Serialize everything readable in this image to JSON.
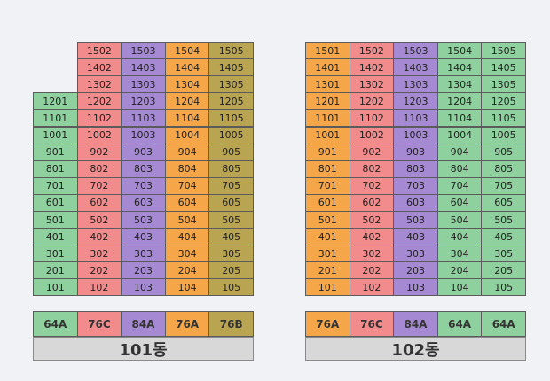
{
  "colors": {
    "green": "#8fd19e",
    "pink": "#f28b8b",
    "purple": "#a58ad3",
    "orange": "#f5a649",
    "olive": "#b8a451"
  },
  "buildings": [
    {
      "name": "101동",
      "column_colors": [
        "green",
        "pink",
        "purple",
        "orange",
        "olive"
      ],
      "floors": [
        [
          "",
          "1502",
          "1503",
          "1504",
          "1505"
        ],
        [
          "",
          "1402",
          "1403",
          "1404",
          "1405"
        ],
        [
          "",
          "1302",
          "1303",
          "1304",
          "1305"
        ],
        [
          "1201",
          "1202",
          "1203",
          "1204",
          "1205"
        ],
        [
          "1101",
          "1102",
          "1103",
          "1104",
          "1105"
        ],
        [
          "1001",
          "1002",
          "1003",
          "1004",
          "1005"
        ],
        [
          "901",
          "902",
          "903",
          "904",
          "905"
        ],
        [
          "801",
          "802",
          "803",
          "804",
          "805"
        ],
        [
          "701",
          "702",
          "703",
          "704",
          "705"
        ],
        [
          "601",
          "602",
          "603",
          "604",
          "605"
        ],
        [
          "501",
          "502",
          "503",
          "504",
          "505"
        ],
        [
          "401",
          "402",
          "403",
          "404",
          "405"
        ],
        [
          "301",
          "302",
          "303",
          "304",
          "305"
        ],
        [
          "201",
          "202",
          "203",
          "204",
          "205"
        ],
        [
          "101",
          "102",
          "103",
          "104",
          "105"
        ]
      ],
      "types": [
        "64A",
        "76C",
        "84A",
        "76A",
        "76B"
      ]
    },
    {
      "name": "102동",
      "column_colors": [
        "orange",
        "pink",
        "purple",
        "green",
        "green"
      ],
      "floors": [
        [
          "1501",
          "1502",
          "1503",
          "1504",
          "1505"
        ],
        [
          "1401",
          "1402",
          "1403",
          "1404",
          "1405"
        ],
        [
          "1301",
          "1302",
          "1303",
          "1304",
          "1305"
        ],
        [
          "1201",
          "1202",
          "1203",
          "1204",
          "1205"
        ],
        [
          "1101",
          "1102",
          "1103",
          "1104",
          "1105"
        ],
        [
          "1001",
          "1002",
          "1003",
          "1004",
          "1005"
        ],
        [
          "901",
          "902",
          "903",
          "904",
          "905"
        ],
        [
          "801",
          "802",
          "803",
          "804",
          "805"
        ],
        [
          "701",
          "702",
          "703",
          "704",
          "705"
        ],
        [
          "601",
          "602",
          "603",
          "604",
          "605"
        ],
        [
          "501",
          "502",
          "503",
          "504",
          "505"
        ],
        [
          "401",
          "402",
          "403",
          "404",
          "405"
        ],
        [
          "301",
          "302",
          "303",
          "304",
          "305"
        ],
        [
          "201",
          "202",
          "203",
          "204",
          "205"
        ],
        [
          "101",
          "102",
          "103",
          "104",
          "105"
        ]
      ],
      "types": [
        "76A",
        "76C",
        "84A",
        "64A",
        "64A"
      ]
    }
  ]
}
